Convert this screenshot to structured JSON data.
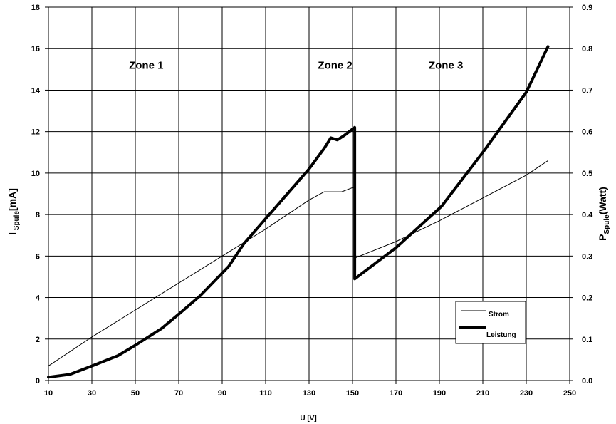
{
  "chart_data": {
    "type": "line",
    "xlabel": "U [V]",
    "ylabel_left": {
      "main": "I",
      "sub": " Spule",
      "unit": "[mA]"
    },
    "ylabel_right": {
      "main": "P",
      "sub": "Spule",
      "unit": "(Watt)"
    },
    "xlim": [
      10,
      250
    ],
    "ylim_left": [
      0,
      18
    ],
    "ylim_right": [
      0,
      0.9
    ],
    "x_ticks": [
      "10",
      "30",
      "50",
      "70",
      "90",
      "110",
      "130",
      "150",
      "170",
      "190",
      "210",
      "230",
      "250"
    ],
    "y_left_ticks": [
      "0",
      "2",
      "4",
      "6",
      "8",
      "10",
      "12",
      "14",
      "16",
      "18"
    ],
    "y_right_ticks": [
      "0.0",
      "0.1",
      "0.2",
      "0.3",
      "0.4",
      "0.5",
      "0.6",
      "0.7",
      "0.8",
      "0.9"
    ],
    "grid": true,
    "zones": [
      {
        "label": "Zone 1",
        "x": 55,
        "y": 15.2
      },
      {
        "label": "Zone 2",
        "x": 142,
        "y": 15.2
      },
      {
        "label": "Zone 3",
        "x": 193,
        "y": 15.2
      }
    ],
    "series": [
      {
        "name": "Strom",
        "axis": "left",
        "style": "thin",
        "x": [
          10,
          30,
          50,
          70,
          90,
          110,
          120,
          130,
          137,
          140,
          145,
          150,
          151,
          151,
          170,
          190,
          210,
          230,
          240
        ],
        "y": [
          0.7,
          2.1,
          3.4,
          4.7,
          6.0,
          7.3,
          8.0,
          8.7,
          9.1,
          9.1,
          9.1,
          9.3,
          9.3,
          5.9,
          6.7,
          7.7,
          8.8,
          9.9,
          10.6
        ]
      },
      {
        "name": "Leistung",
        "axis": "right",
        "style": "thick",
        "x": [
          10,
          20,
          30,
          42,
          50,
          62,
          70,
          80,
          93,
          100,
          110,
          120,
          130,
          137,
          140,
          143,
          146,
          151,
          151,
          170,
          191,
          210,
          230,
          240
        ],
        "y": [
          0.008,
          0.015,
          0.035,
          0.06,
          0.085,
          0.125,
          0.16,
          0.205,
          0.275,
          0.33,
          0.39,
          0.45,
          0.51,
          0.56,
          0.585,
          0.58,
          0.59,
          0.61,
          0.245,
          0.32,
          0.42,
          0.55,
          0.695,
          0.805
        ]
      }
    ],
    "legend": {
      "placement": "bottom-right",
      "items": [
        {
          "label": "Strom",
          "style": "thin"
        },
        {
          "label": "Leistung",
          "style": "thick"
        }
      ]
    }
  }
}
